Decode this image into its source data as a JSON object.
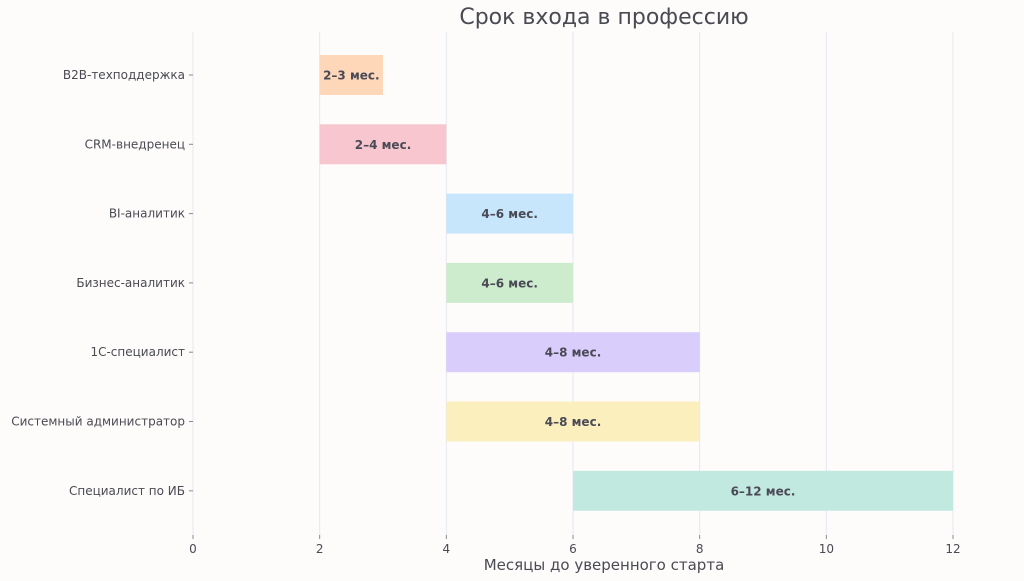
{
  "chart_data": {
    "type": "bar",
    "orientation": "horizontal-range",
    "title": "Срок входа в профессию",
    "xlabel": "Месяцы до уверенного старта",
    "ylabel": "",
    "xlim": [
      0,
      12
    ],
    "xticks": [
      0,
      2,
      4,
      6,
      8,
      10,
      12
    ],
    "grid": true,
    "bars": [
      {
        "category": "B2B-техподдержка",
        "start": 2,
        "end": 3,
        "label": "2–3 мес.",
        "color": "#fdd7b8"
      },
      {
        "category": "CRM-внедренец",
        "start": 2,
        "end": 4,
        "label": "2–4 мес.",
        "color": "#f7c6cf"
      },
      {
        "category": "BI-аналитик",
        "start": 4,
        "end": 6,
        "label": "4–6 мес.",
        "color": "#c8e6fb"
      },
      {
        "category": "Бизнес-аналитик",
        "start": 4,
        "end": 6,
        "label": "4–6 мес.",
        "color": "#cdeccd"
      },
      {
        "category": "1С-специалист",
        "start": 4,
        "end": 8,
        "label": "4–8 мес.",
        "color": "#d9cdfb"
      },
      {
        "category": "Системный администратор",
        "start": 4,
        "end": 8,
        "label": "4–8 мес.",
        "color": "#fcefbe"
      },
      {
        "category": "Специалист по ИБ",
        "start": 6,
        "end": 12,
        "label": "6–12 мес.",
        "color": "#c2e9e0"
      }
    ]
  }
}
